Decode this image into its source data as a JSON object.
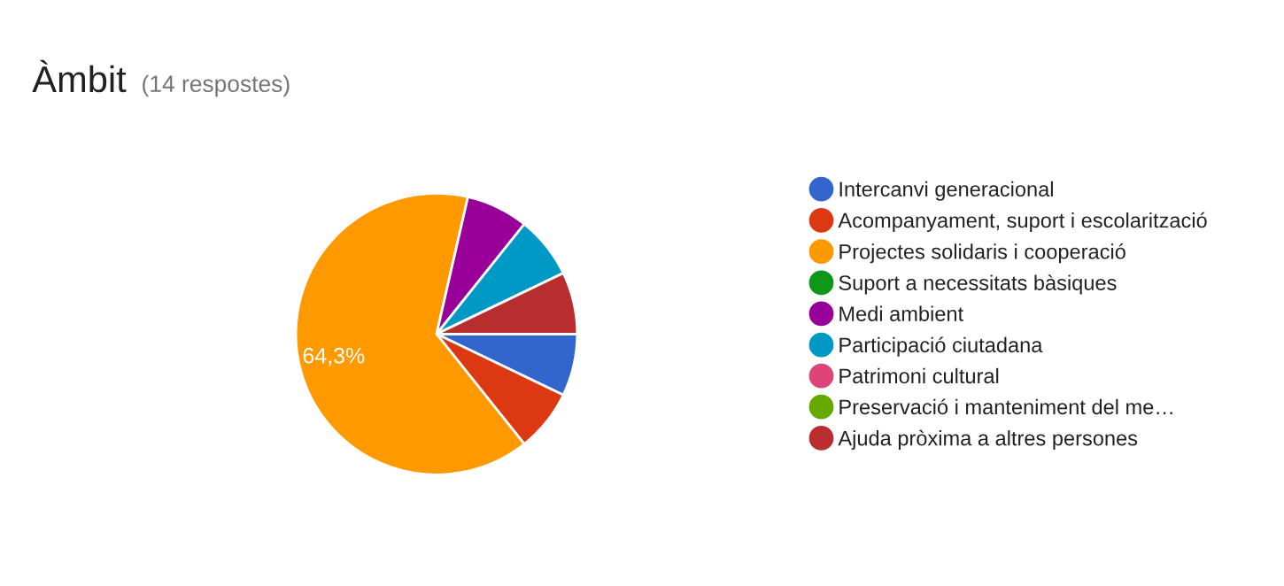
{
  "chart_data": {
    "type": "pie",
    "title": "Àmbit",
    "subtitle": "(14 respostes)",
    "categories": [
      "Intercanvi generacional",
      "Acompanyament, suport i escolarització",
      "Projectes solidaris i cooperació",
      "Suport a necessitats bàsiques",
      "Medi ambient",
      "Participació ciutadana",
      "Patrimoni cultural",
      "Preservació i manteniment del me…",
      "Ajuda pròxima a altres persones"
    ],
    "values": [
      7.14,
      7.14,
      64.3,
      0,
      7.14,
      7.14,
      0,
      0,
      7.14
    ],
    "colors": [
      "#3366cc",
      "#dc3912",
      "#ff9900",
      "#109618",
      "#990099",
      "#0099c6",
      "#dd4477",
      "#66aa00",
      "#b82e2e"
    ],
    "value_labels": [
      null,
      null,
      "64,3%",
      null,
      null,
      null,
      null,
      null,
      null
    ],
    "legend": "right"
  }
}
